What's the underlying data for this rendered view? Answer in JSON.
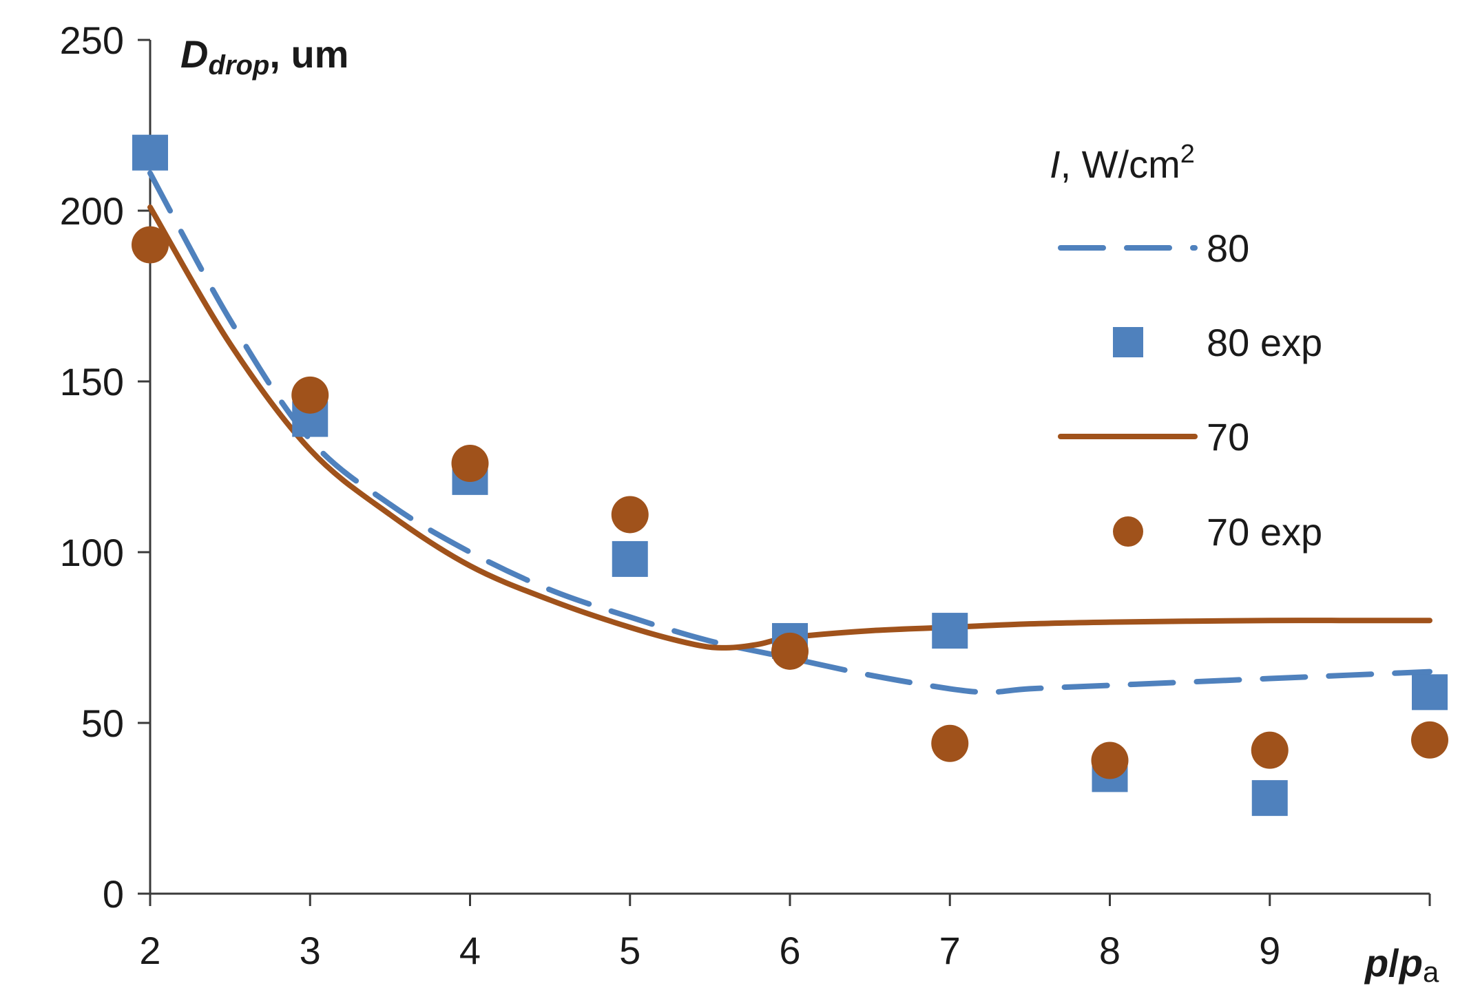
{
  "chart_data": {
    "type": "line",
    "title": "",
    "ylabel": {
      "main": "D",
      "sub": "drop",
      "suffix": ", um"
    },
    "xlabel": {
      "main": "p",
      "slash": "/",
      "p2": "p",
      "sub": "a"
    },
    "xlim": [
      2,
      10
    ],
    "ylim": [
      0,
      250
    ],
    "x_ticks": [
      2,
      3,
      4,
      5,
      6,
      7,
      8,
      9
    ],
    "y_ticks": [
      0,
      50,
      100,
      150,
      200,
      250
    ],
    "legend": {
      "title": {
        "italic": "I",
        "rest": ", W/cm",
        "sup": "2"
      },
      "position": "right",
      "entries": [
        "80",
        "80 exp",
        "70",
        "70 exp"
      ]
    },
    "series": [
      {
        "name": "80",
        "style": "dashed-line",
        "color": "#4F81BD",
        "x": [
          2,
          2.5,
          3,
          3.5,
          4,
          4.5,
          5,
          5.5,
          6,
          6.5,
          7,
          7.25,
          7.5,
          8,
          8.5,
          9,
          9.5,
          10
        ],
        "y": [
          211,
          168,
          133,
          114,
          100,
          89,
          81,
          74,
          69,
          64,
          60,
          59,
          60,
          61,
          62,
          63,
          64,
          65
        ]
      },
      {
        "name": "80 exp",
        "style": "square-markers",
        "color": "#4F81BD",
        "x": [
          2,
          3,
          4,
          5,
          6,
          7,
          8,
          9,
          10
        ],
        "y": [
          217,
          139,
          122,
          98,
          74,
          77,
          35,
          28,
          59
        ]
      },
      {
        "name": "70",
        "style": "solid-line",
        "color": "#A0521B",
        "x": [
          2,
          2.5,
          3,
          3.5,
          4,
          4.5,
          5,
          5.4,
          5.6,
          5.8,
          6,
          6.5,
          7,
          7.5,
          8,
          8.5,
          9,
          9.5,
          10
        ],
        "y": [
          201,
          161,
          130,
          111,
          96,
          86,
          78,
          73,
          72,
          73,
          75,
          77,
          78,
          79,
          79.5,
          79.8,
          80,
          80,
          80
        ]
      },
      {
        "name": "70 exp",
        "style": "circle-markers",
        "color": "#A0521B",
        "x": [
          2,
          3,
          4,
          5,
          6,
          7,
          8,
          9,
          10
        ],
        "y": [
          190,
          146,
          126,
          111,
          71,
          44,
          39,
          42,
          45
        ]
      }
    ]
  }
}
